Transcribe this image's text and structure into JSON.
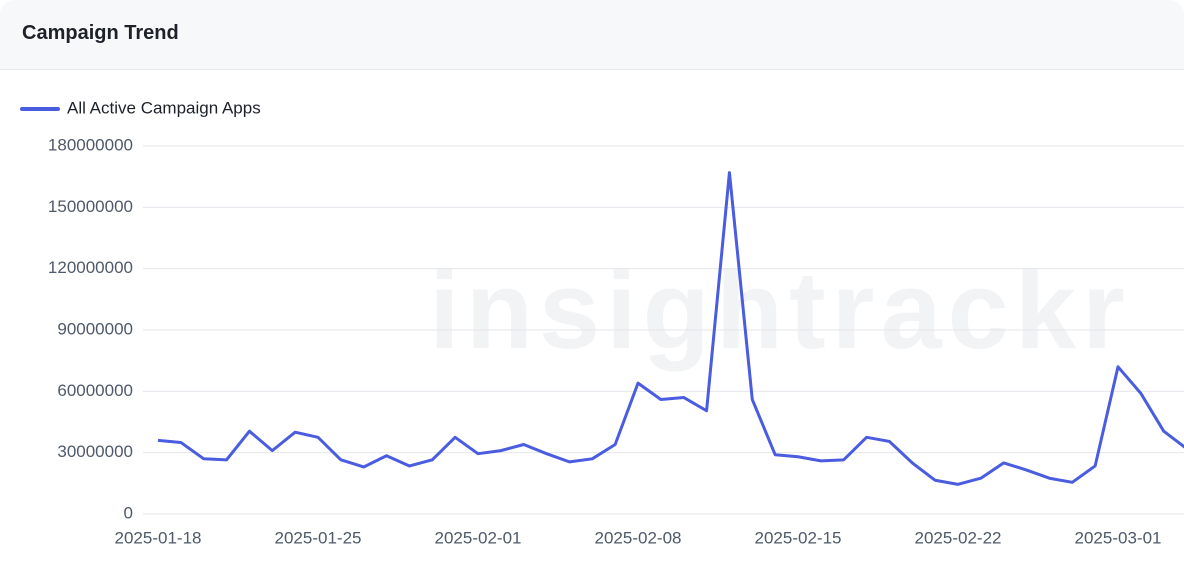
{
  "header": {
    "title": "Campaign Trend"
  },
  "chart_data": {
    "type": "line",
    "watermark": "insightrackr",
    "categories": [
      "2025-01-18",
      null,
      null,
      null,
      null,
      null,
      null,
      "2025-01-25",
      null,
      null,
      null,
      null,
      null,
      null,
      "2025-02-01",
      null,
      null,
      null,
      null,
      null,
      null,
      "2025-02-08",
      null,
      null,
      null,
      null,
      null,
      null,
      "2025-02-15",
      null,
      null,
      null,
      null,
      null,
      null,
      "2025-02-22",
      null,
      null,
      null,
      null,
      null,
      null,
      "2025-03-01",
      null,
      null,
      null
    ],
    "series": [
      {
        "name": "All Active Campaign Apps",
        "color": "#4a5ce0",
        "values": [
          36000000,
          35000000,
          27000000,
          26500000,
          40500000,
          31000000,
          40000000,
          37500000,
          26500000,
          23000000,
          28500000,
          23500000,
          26500000,
          37500000,
          29500000,
          31000000,
          34000000,
          29500000,
          25500000,
          27000000,
          34000000,
          64000000,
          56000000,
          57000000,
          50500000,
          167000000,
          56000000,
          29000000,
          28000000,
          26000000,
          26500000,
          37500000,
          35500000,
          25000000,
          16500000,
          14500000,
          17500000,
          25000000,
          21500000,
          17500000,
          15500000,
          23500000,
          72000000,
          59000000,
          40500000,
          32000000
        ]
      }
    ],
    "ylim": [
      0,
      180000000
    ],
    "yticks": [
      0,
      30000000,
      60000000,
      90000000,
      120000000,
      150000000,
      180000000
    ],
    "grid": true
  }
}
